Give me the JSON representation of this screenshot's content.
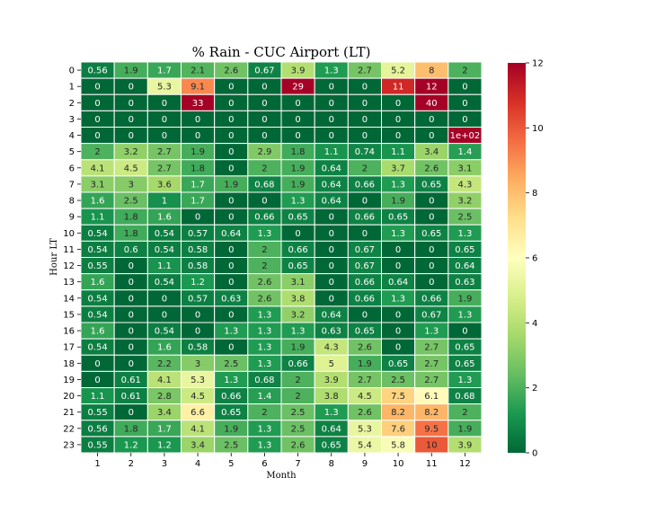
{
  "chart_data": {
    "type": "heatmap",
    "title": "% Rain - CUC Airport (LT)",
    "xlabel": "Month",
    "ylabel": "Hour LT",
    "x_categories": [
      "1",
      "2",
      "3",
      "4",
      "5",
      "6",
      "7",
      "8",
      "9",
      "10",
      "11",
      "12"
    ],
    "y_categories": [
      "0",
      "1",
      "2",
      "3",
      "4",
      "5",
      "6",
      "7",
      "8",
      "9",
      "10",
      "11",
      "12",
      "13",
      "14",
      "15",
      "16",
      "17",
      "18",
      "19",
      "20",
      "21",
      "22",
      "23"
    ],
    "values": [
      [
        0.56,
        1.9,
        1.7,
        2.1,
        2.6,
        0.67,
        3.9,
        1.3,
        2.7,
        5.2,
        8,
        2
      ],
      [
        0,
        0,
        5.3,
        9.1,
        0,
        0,
        29,
        0,
        0,
        11,
        12,
        0
      ],
      [
        0,
        0,
        0,
        33,
        0,
        0,
        0,
        0,
        0,
        0,
        40,
        0
      ],
      [
        0,
        0,
        0,
        0,
        0,
        0,
        0,
        0,
        0,
        0,
        0,
        0
      ],
      [
        0,
        0,
        0,
        0,
        0,
        0,
        0,
        0,
        0,
        0,
        0,
        100
      ],
      [
        2,
        3.2,
        2.7,
        1.9,
        0,
        2.9,
        1.8,
        1.1,
        0.74,
        1.1,
        3.4,
        1.4
      ],
      [
        4.1,
        4.5,
        2.7,
        1.8,
        0,
        2,
        1.9,
        0.64,
        2,
        3.7,
        2.6,
        3.1
      ],
      [
        3.1,
        3,
        3.6,
        1.7,
        1.9,
        0.68,
        1.9,
        0.64,
        0.66,
        1.3,
        0.65,
        4.3
      ],
      [
        1.6,
        2.5,
        1,
        1.7,
        0,
        0,
        1.3,
        0.64,
        0,
        1.9,
        0,
        3.2
      ],
      [
        1.1,
        1.8,
        1.6,
        0,
        0,
        0.66,
        0.65,
        0,
        0.66,
        0.65,
        0,
        2.5
      ],
      [
        0.54,
        1.8,
        0.54,
        0.57,
        0.64,
        1.3,
        0,
        0,
        0,
        1.3,
        0.65,
        1.3
      ],
      [
        0.54,
        0.6,
        0.54,
        0.58,
        0,
        2,
        0.66,
        0,
        0.67,
        0,
        0,
        0.65
      ],
      [
        0.55,
        0,
        1.1,
        0.58,
        0,
        2,
        0.65,
        0,
        0.67,
        0,
        0,
        0.64
      ],
      [
        1.6,
        0,
        0.54,
        1.2,
        0,
        2.6,
        3.1,
        0,
        0.66,
        0.64,
        0,
        0.63
      ],
      [
        0.54,
        0,
        0,
        0.57,
        0.63,
        2.6,
        3.8,
        0,
        0.66,
        1.3,
        0.66,
        1.9
      ],
      [
        0.54,
        0,
        0,
        0,
        0,
        1.3,
        3.2,
        0.64,
        0,
        0,
        0.67,
        1.3
      ],
      [
        1.6,
        0,
        0.54,
        0,
        1.3,
        1.3,
        1.3,
        0.63,
        0.65,
        0,
        1.3,
        0
      ],
      [
        0.54,
        0,
        1.6,
        0.58,
        0,
        1.3,
        1.9,
        4.3,
        2.6,
        0,
        2.7,
        0.65
      ],
      [
        0,
        0,
        2.2,
        3,
        2.5,
        1.3,
        0.66,
        5,
        1.9,
        0.65,
        2.7,
        0.65
      ],
      [
        0,
        0.61,
        4.1,
        5.3,
        1.3,
        0.68,
        2,
        3.9,
        2.7,
        2.5,
        2.7,
        1.3
      ],
      [
        1.1,
        0.61,
        2.8,
        4.5,
        0.66,
        1.4,
        2,
        3.8,
        4.5,
        7.5,
        6.1,
        0.68
      ],
      [
        0.55,
        0,
        3.4,
        6.6,
        0.65,
        2,
        2.5,
        1.3,
        2.6,
        8.2,
        8.2,
        2
      ],
      [
        0.56,
        1.8,
        1.7,
        4.1,
        1.9,
        1.3,
        2.5,
        0.64,
        5.3,
        7.6,
        9.5,
        1.9
      ],
      [
        0.55,
        1.2,
        1.2,
        3.4,
        2.5,
        1.3,
        2.6,
        0.65,
        5.4,
        5.8,
        10,
        3.9
      ]
    ],
    "value_labels": [
      [
        "0.56",
        "1.9",
        "1.7",
        "2.1",
        "2.6",
        "0.67",
        "3.9",
        "1.3",
        "2.7",
        "5.2",
        "8",
        "2"
      ],
      [
        "0",
        "0",
        "5.3",
        "9.1",
        "0",
        "0",
        "29",
        "0",
        "0",
        "11",
        "12",
        "0"
      ],
      [
        "0",
        "0",
        "0",
        "33",
        "0",
        "0",
        "0",
        "0",
        "0",
        "0",
        "40",
        "0"
      ],
      [
        "0",
        "0",
        "0",
        "0",
        "0",
        "0",
        "0",
        "0",
        "0",
        "0",
        "0",
        "0"
      ],
      [
        "0",
        "0",
        "0",
        "0",
        "0",
        "0",
        "0",
        "0",
        "0",
        "0",
        "0",
        "1e+02"
      ],
      [
        "2",
        "3.2",
        "2.7",
        "1.9",
        "0",
        "2.9",
        "1.8",
        "1.1",
        "0.74",
        "1.1",
        "3.4",
        "1.4"
      ],
      [
        "4.1",
        "4.5",
        "2.7",
        "1.8",
        "0",
        "2",
        "1.9",
        "0.64",
        "2",
        "3.7",
        "2.6",
        "3.1"
      ],
      [
        "3.1",
        "3",
        "3.6",
        "1.7",
        "1.9",
        "0.68",
        "1.9",
        "0.64",
        "0.66",
        "1.3",
        "0.65",
        "4.3"
      ],
      [
        "1.6",
        "2.5",
        "1",
        "1.7",
        "0",
        "0",
        "1.3",
        "0.64",
        "0",
        "1.9",
        "0",
        "3.2"
      ],
      [
        "1.1",
        "1.8",
        "1.6",
        "0",
        "0",
        "0.66",
        "0.65",
        "0",
        "0.66",
        "0.65",
        "0",
        "2.5"
      ],
      [
        "0.54",
        "1.8",
        "0.54",
        "0.57",
        "0.64",
        "1.3",
        "0",
        "0",
        "0",
        "1.3",
        "0.65",
        "1.3"
      ],
      [
        "0.54",
        "0.6",
        "0.54",
        "0.58",
        "0",
        "2",
        "0.66",
        "0",
        "0.67",
        "0",
        "0",
        "0.65"
      ],
      [
        "0.55",
        "0",
        "1.1",
        "0.58",
        "0",
        "2",
        "0.65",
        "0",
        "0.67",
        "0",
        "0",
        "0.64"
      ],
      [
        "1.6",
        "0",
        "0.54",
        "1.2",
        "0",
        "2.6",
        "3.1",
        "0",
        "0.66",
        "0.64",
        "0",
        "0.63"
      ],
      [
        "0.54",
        "0",
        "0",
        "0.57",
        "0.63",
        "2.6",
        "3.8",
        "0",
        "0.66",
        "1.3",
        "0.66",
        "1.9"
      ],
      [
        "0.54",
        "0",
        "0",
        "0",
        "0",
        "1.3",
        "3.2",
        "0.64",
        "0",
        "0",
        "0.67",
        "1.3"
      ],
      [
        "1.6",
        "0",
        "0.54",
        "0",
        "1.3",
        "1.3",
        "1.3",
        "0.63",
        "0.65",
        "0",
        "1.3",
        "0"
      ],
      [
        "0.54",
        "0",
        "1.6",
        "0.58",
        "0",
        "1.3",
        "1.9",
        "4.3",
        "2.6",
        "0",
        "2.7",
        "0.65"
      ],
      [
        "0",
        "0",
        "2.2",
        "3",
        "2.5",
        "1.3",
        "0.66",
        "5",
        "1.9",
        "0.65",
        "2.7",
        "0.65"
      ],
      [
        "0",
        "0.61",
        "4.1",
        "5.3",
        "1.3",
        "0.68",
        "2",
        "3.9",
        "2.7",
        "2.5",
        "2.7",
        "1.3"
      ],
      [
        "1.1",
        "0.61",
        "2.8",
        "4.5",
        "0.66",
        "1.4",
        "2",
        "3.8",
        "4.5",
        "7.5",
        "6.1",
        "0.68"
      ],
      [
        "0.55",
        "0",
        "3.4",
        "6.6",
        "0.65",
        "2",
        "2.5",
        "1.3",
        "2.6",
        "8.2",
        "8.2",
        "2"
      ],
      [
        "0.56",
        "1.8",
        "1.7",
        "4.1",
        "1.9",
        "1.3",
        "2.5",
        "0.64",
        "5.3",
        "7.6",
        "9.5",
        "1.9"
      ],
      [
        "0.55",
        "1.2",
        "1.2",
        "3.4",
        "2.5",
        "1.3",
        "2.6",
        "0.65",
        "5.4",
        "5.8",
        "10",
        "3.9"
      ]
    ],
    "color_scale": {
      "colormap": "RdYlGn_r",
      "vmin": 0,
      "vmax": 12,
      "ticks": [
        "0",
        "2",
        "4",
        "6",
        "8",
        "10",
        "12"
      ],
      "stops": [
        "#006837",
        "#1a9850",
        "#66bd63",
        "#a6d96a",
        "#d9ef8b",
        "#ffffbf",
        "#fee08b",
        "#fdae61",
        "#f46d43",
        "#d73027",
        "#a50026"
      ]
    },
    "grid_line_color": "#ffffff"
  }
}
